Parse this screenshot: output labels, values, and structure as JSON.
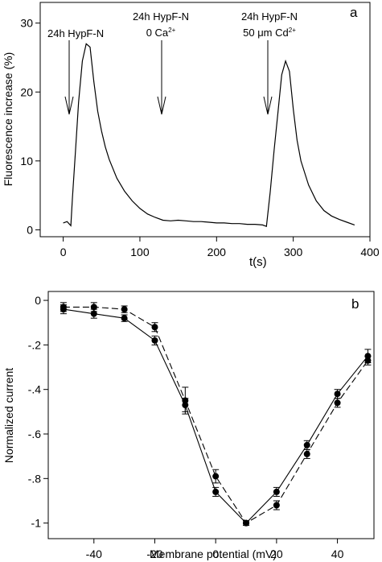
{
  "chart_data": [
    {
      "type": "line",
      "panel_label": "a",
      "ylabel": "Fluorescence increase (%)",
      "xlabel": "t(s)",
      "xlim": [
        -30,
        400
      ],
      "ylim": [
        -1,
        33
      ],
      "x_ticks": [
        "0",
        "100",
        "200",
        "300",
        "400"
      ],
      "y_ticks": [
        "0",
        "10",
        "20",
        "30"
      ],
      "annotations": [
        {
          "lines": [
            "24h HypF-N"
          ],
          "x": 5
        },
        {
          "lines": [
            "24h HypF-N",
            "0 Ca2+"
          ],
          "x": 128
        },
        {
          "lines": [
            "24h HypF-N",
            "50 μm Cd2+"
          ],
          "x": 268
        }
      ],
      "series": [
        {
          "x": [
            0,
            5,
            10,
            12,
            16,
            20,
            25,
            30,
            35,
            40,
            45,
            50,
            55,
            60,
            70,
            80,
            90,
            100,
            110,
            120,
            130,
            140,
            150,
            160,
            170,
            180,
            190,
            200,
            210,
            220,
            230,
            240,
            250,
            260,
            265,
            270,
            275,
            280,
            285,
            290,
            295,
            300,
            305,
            310,
            320,
            330,
            340,
            350,
            360,
            370,
            380
          ],
          "y": [
            1.0,
            1.2,
            0.6,
            4.5,
            11.5,
            18.5,
            24.5,
            27.0,
            26.5,
            21.5,
            17.2,
            14.3,
            12.0,
            10.2,
            7.5,
            5.6,
            4.2,
            3.1,
            2.3,
            1.8,
            1.4,
            1.3,
            1.4,
            1.3,
            1.2,
            1.2,
            1.1,
            1.0,
            1.0,
            0.9,
            0.9,
            0.8,
            0.8,
            0.7,
            0.5,
            5.5,
            11.5,
            17.0,
            22.5,
            24.5,
            23.0,
            17.5,
            13.0,
            10.0,
            6.5,
            4.2,
            2.8,
            2.0,
            1.5,
            1.1,
            0.7
          ]
        }
      ]
    },
    {
      "type": "line",
      "panel_label": "b",
      "ylabel": "Normalized current",
      "xlabel": "Membrane potential (mV)",
      "xlim": [
        -55,
        52
      ],
      "ylim": [
        -1.07,
        0.04
      ],
      "x_ticks": [
        "-40",
        "-20",
        "0",
        "20",
        "40"
      ],
      "y_ticks": [
        "0",
        "-.2",
        "-.4",
        "-.6",
        "-.8",
        "-1"
      ],
      "categories": [
        -50,
        -40,
        -30,
        -20,
        -10,
        0,
        10,
        20,
        30,
        40,
        50
      ],
      "series": [
        {
          "line_style": "solid",
          "values": [
            -0.04,
            -0.06,
            -0.08,
            -0.18,
            -0.47,
            -0.86,
            -1.0,
            -0.86,
            -0.65,
            -0.42,
            -0.25
          ],
          "errors": [
            0.02,
            0.02,
            0.015,
            0.02,
            0.03,
            0.02,
            0.01,
            0.02,
            0.02,
            0.02,
            0.03
          ]
        },
        {
          "line_style": "dashed",
          "values": [
            -0.03,
            -0.03,
            -0.04,
            -0.12,
            -0.45,
            -0.79,
            -1.0,
            -0.92,
            -0.69,
            -0.46,
            -0.27
          ],
          "errors": [
            0.02,
            0.02,
            0.015,
            0.02,
            0.06,
            0.03,
            0.01,
            0.02,
            0.02,
            0.02,
            0.02
          ]
        }
      ]
    }
  ]
}
